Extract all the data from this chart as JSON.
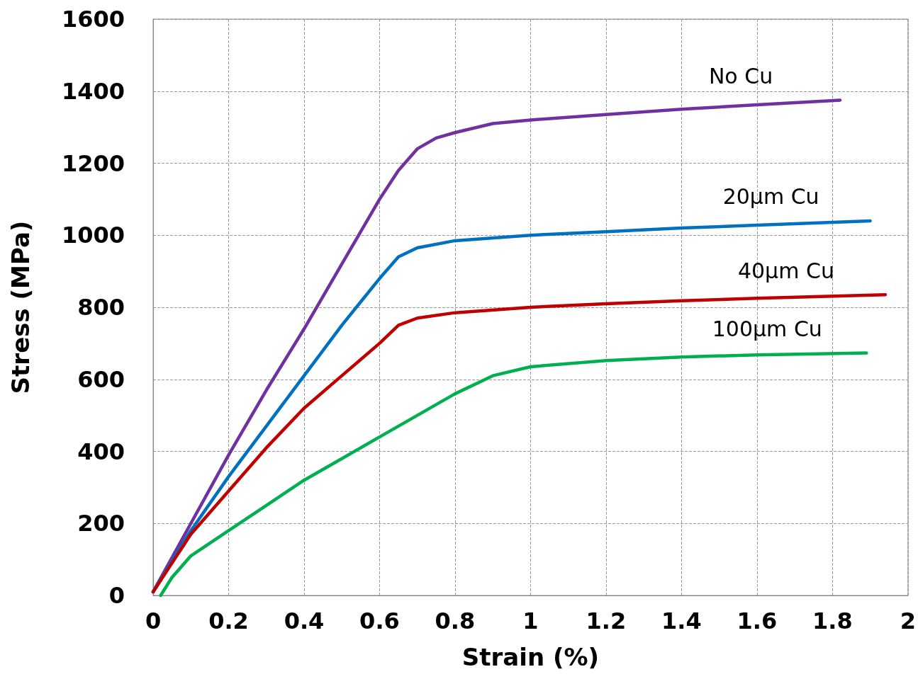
{
  "chart_data": {
    "type": "line",
    "xlabel": "Strain (%)",
    "ylabel": "Stress (MPa)",
    "xlim": [
      0,
      2
    ],
    "xticks": [
      0,
      0.2,
      0.4,
      0.6,
      0.8,
      1,
      1.2,
      1.4,
      1.6,
      1.8,
      2
    ],
    "ylim": [
      0,
      1600
    ],
    "yticks": [
      0,
      200,
      400,
      600,
      800,
      1000,
      1200,
      1400,
      1600
    ],
    "grid": true,
    "marker": "none",
    "line_style": "solid",
    "series": [
      {
        "name": "No Cu",
        "color": "#7030a0",
        "x": [
          0,
          0.1,
          0.2,
          0.3,
          0.4,
          0.5,
          0.6,
          0.65,
          0.7,
          0.75,
          0.8,
          0.9,
          1.0,
          1.2,
          1.4,
          1.6,
          1.82
        ],
        "values": [
          10,
          200,
          390,
          570,
          740,
          920,
          1100,
          1180,
          1240,
          1270,
          1285,
          1310,
          1320,
          1335,
          1350,
          1362,
          1375
        ]
      },
      {
        "name": "20μm Cu",
        "color": "#0070c0",
        "x": [
          0,
          0.1,
          0.2,
          0.3,
          0.4,
          0.5,
          0.6,
          0.65,
          0.7,
          0.8,
          1.0,
          1.2,
          1.4,
          1.6,
          1.9
        ],
        "values": [
          10,
          180,
          330,
          470,
          610,
          750,
          880,
          940,
          965,
          985,
          1000,
          1010,
          1020,
          1028,
          1040
        ]
      },
      {
        "name": "40μm Cu",
        "color": "#c00000",
        "x": [
          0,
          0.1,
          0.2,
          0.3,
          0.4,
          0.5,
          0.6,
          0.65,
          0.7,
          0.8,
          1.0,
          1.2,
          1.4,
          1.6,
          1.94
        ],
        "values": [
          10,
          170,
          290,
          410,
          520,
          610,
          700,
          750,
          770,
          785,
          800,
          810,
          818,
          825,
          835
        ]
      },
      {
        "name": "100μm Cu",
        "color": "#00b050",
        "x": [
          0.02,
          0.05,
          0.1,
          0.2,
          0.3,
          0.4,
          0.5,
          0.6,
          0.7,
          0.8,
          0.9,
          1.0,
          1.2,
          1.4,
          1.6,
          1.89
        ],
        "values": [
          0,
          50,
          110,
          180,
          250,
          320,
          380,
          440,
          500,
          560,
          610,
          635,
          652,
          662,
          668,
          673
        ]
      }
    ]
  }
}
